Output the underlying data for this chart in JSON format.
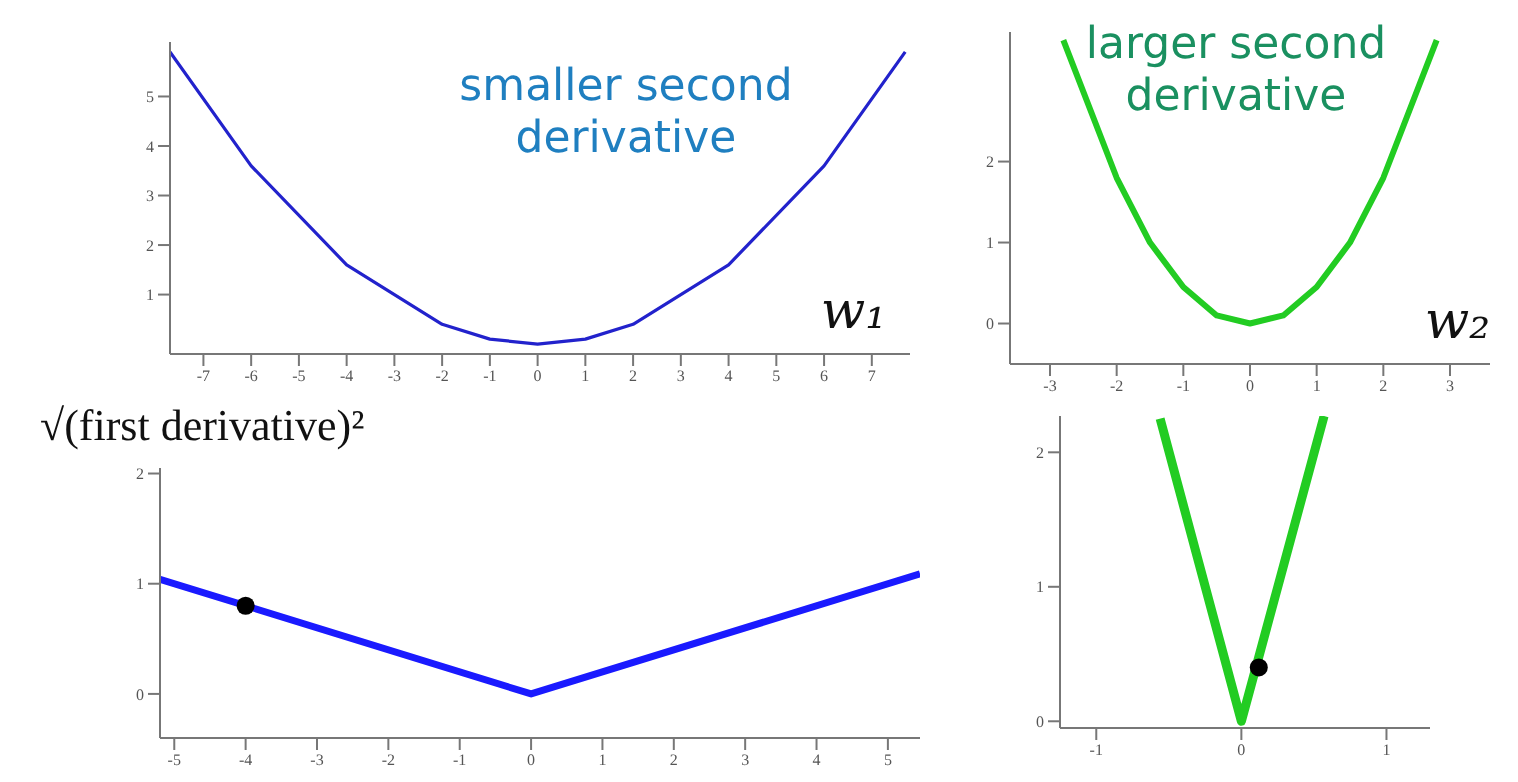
{
  "chart_data": [
    {
      "type": "line",
      "xlabel": "w₁",
      "annotations": [
        "smaller second derivative"
      ],
      "xlim": [
        -7.7,
        7.8
      ],
      "ylim": [
        -0.2,
        6.1
      ],
      "xticks": [
        -7,
        -6,
        -5,
        -4,
        -3,
        -2,
        -1,
        0,
        1,
        2,
        3,
        4,
        5,
        6,
        7
      ],
      "yticks": [
        1,
        2,
        3,
        4,
        5
      ],
      "grid": false,
      "series": [
        {
          "color": "#2222cc",
          "x": [
            -7.7,
            -6,
            -4,
            -2,
            -1,
            0,
            1,
            2,
            4,
            6,
            7.7
          ],
          "values": [
            5.9,
            3.6,
            1.6,
            0.4,
            0.1,
            0,
            0.1,
            0.4,
            1.6,
            3.6,
            5.9
          ]
        }
      ]
    },
    {
      "type": "line",
      "xlabel": "w₂",
      "annotations": [
        "larger second derivative"
      ],
      "xlim": [
        -3.6,
        3.6
      ],
      "ylim": [
        -0.5,
        3.6
      ],
      "xticks": [
        -3,
        -2,
        -1,
        0,
        1,
        2,
        3
      ],
      "yticks": [
        0,
        1,
        2
      ],
      "grid": false,
      "series": [
        {
          "color": "#22cc22",
          "x": [
            -2.8,
            -2,
            -1.5,
            -1,
            -0.5,
            0,
            0.5,
            1,
            1.5,
            2,
            2.8
          ],
          "values": [
            3.5,
            1.8,
            1,
            0.45,
            0.1,
            0,
            0.1,
            0.45,
            1,
            1.8,
            3.5
          ]
        }
      ]
    },
    {
      "type": "line",
      "annotations": [
        "√(first derivative)²"
      ],
      "xlim": [
        -5.2,
        5.45
      ],
      "ylim": [
        -0.4,
        2.05
      ],
      "xticks": [
        -5,
        -4,
        -3,
        -2,
        -1,
        0,
        1,
        2,
        3,
        4,
        5
      ],
      "yticks": [
        0,
        1,
        2
      ],
      "grid": false,
      "series": [
        {
          "color": "#1a1aff",
          "x": [
            -5.2,
            0,
            5.45
          ],
          "values": [
            1.04,
            0,
            1.09
          ]
        },
        {
          "type": "scatter",
          "color": "#000000",
          "x": [
            -4
          ],
          "values": [
            0.8
          ]
        }
      ]
    },
    {
      "type": "line",
      "xlim": [
        -1.25,
        1.3
      ],
      "ylim": [
        -0.05,
        2.27
      ],
      "xticks": [
        -1,
        0,
        1
      ],
      "yticks": [
        0,
        1,
        2
      ],
      "grid": false,
      "series": [
        {
          "color": "#22cc22",
          "x": [
            -0.56,
            0,
            0.57
          ],
          "values": [
            2.25,
            0,
            2.27
          ]
        },
        {
          "type": "scatter",
          "color": "#000000",
          "x": [
            0.12
          ],
          "values": [
            0.4
          ]
        }
      ]
    }
  ]
}
